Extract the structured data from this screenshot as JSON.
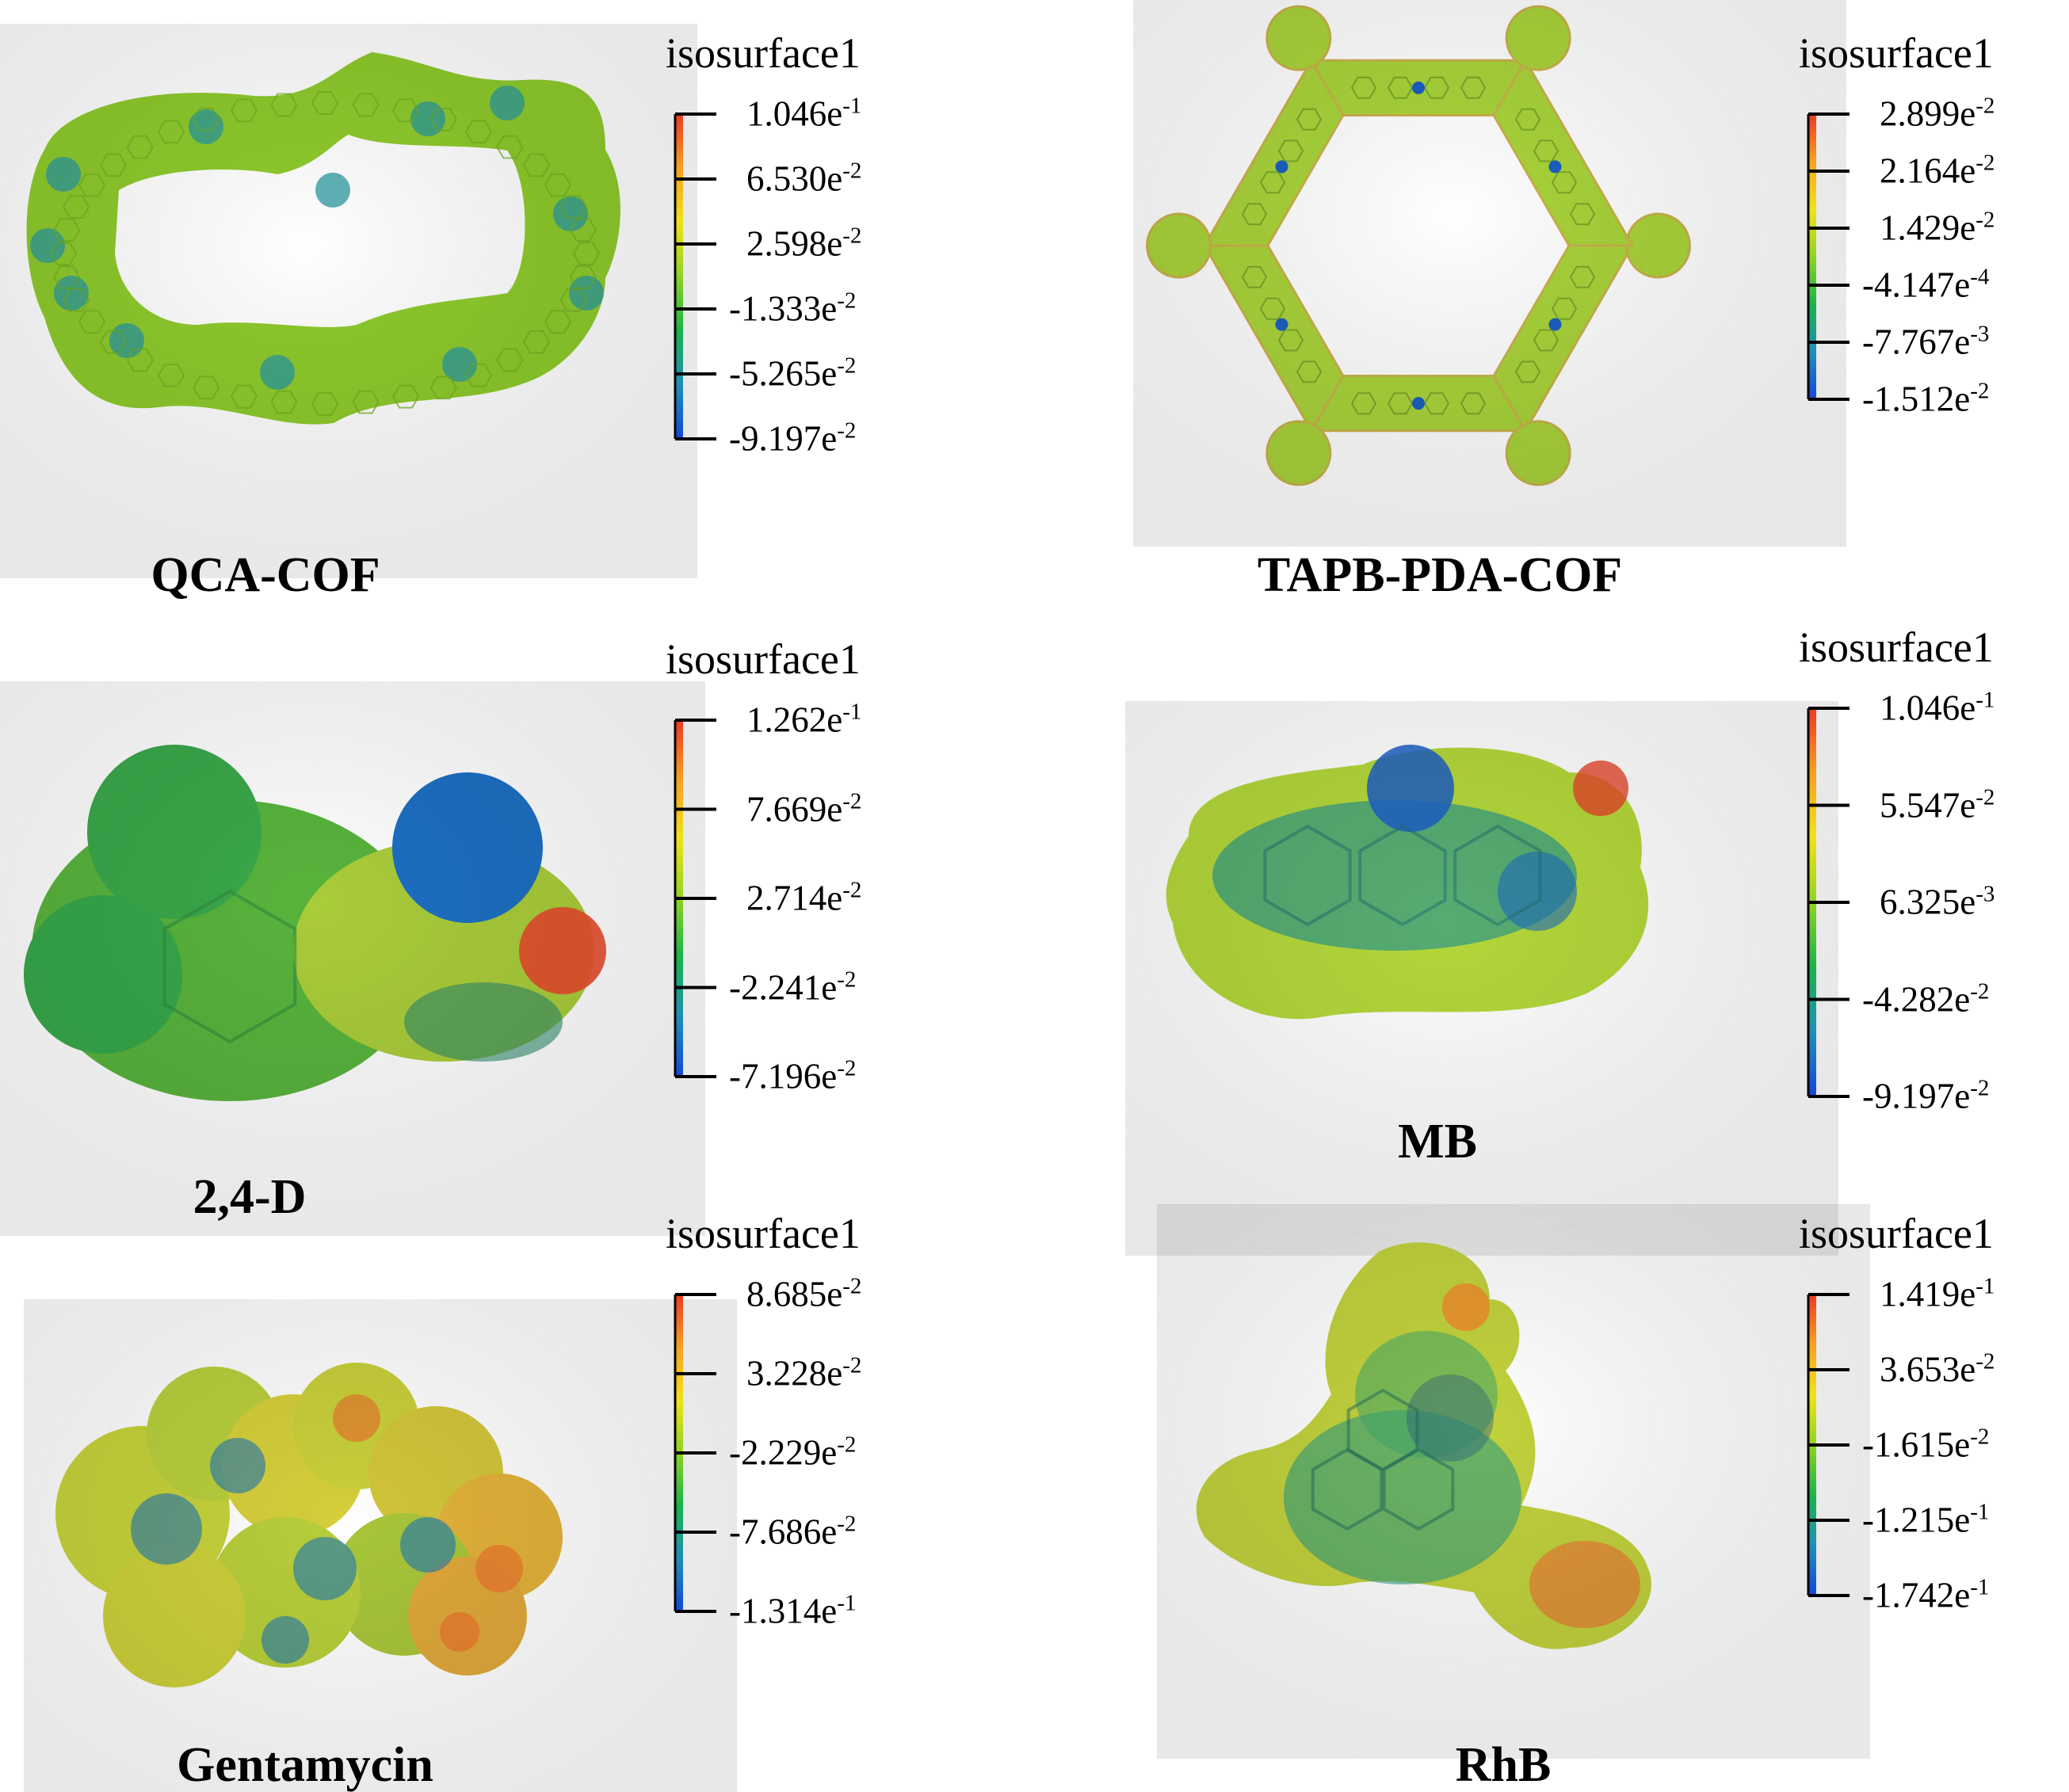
{
  "colorbar_gradient": [
    "#1447d8",
    "#1f8fb8",
    "#19b44a",
    "#8fd321",
    "#f2e21a",
    "#f7a021",
    "#ec3a22"
  ],
  "panels": [
    {
      "id": "qca-cof",
      "name": "QCA-COF",
      "colorbar_title": "isosurface1",
      "ticks": [
        {
          "mantissa": "1.046e",
          "exponent": "-1"
        },
        {
          "mantissa": "6.530e",
          "exponent": "-2"
        },
        {
          "mantissa": "2.598e",
          "exponent": "-2"
        },
        {
          "mantissa": "-1.333e",
          "exponent": "-2"
        },
        {
          "mantissa": "-5.265e",
          "exponent": "-2"
        },
        {
          "mantissa": "-9.197e",
          "exponent": "-2"
        }
      ],
      "shape": "cof-ring",
      "surface_color": "#8ecb2c"
    },
    {
      "id": "tapb-pda-cof",
      "name": "TAPB-PDA-COF",
      "colorbar_title": "isosurface1",
      "ticks": [
        {
          "mantissa": "2.899e",
          "exponent": "-2"
        },
        {
          "mantissa": "2.164e",
          "exponent": "-2"
        },
        {
          "mantissa": "1.429e",
          "exponent": "-2"
        },
        {
          "mantissa": "-4.147e",
          "exponent": "-4"
        },
        {
          "mantissa": "-7.767e",
          "exponent": "-3"
        },
        {
          "mantissa": "-1.512e",
          "exponent": "-2"
        }
      ],
      "shape": "hexagon-framework",
      "surface_color": "#a9d43a"
    },
    {
      "id": "2-4-d",
      "name": "2,4-D",
      "colorbar_title": "isosurface1",
      "ticks": [
        {
          "mantissa": "1.262e",
          "exponent": "-1"
        },
        {
          "mantissa": "7.669e",
          "exponent": "-2"
        },
        {
          "mantissa": "2.714e",
          "exponent": "-2"
        },
        {
          "mantissa": "-2.241e",
          "exponent": "-2"
        },
        {
          "mantissa": "-7.196e",
          "exponent": "-2"
        }
      ],
      "shape": "small-molecule",
      "surface_color": "#5fbf3a"
    },
    {
      "id": "mb",
      "name": "MB",
      "colorbar_title": "isosurface1",
      "ticks": [
        {
          "mantissa": "1.046e",
          "exponent": "-1"
        },
        {
          "mantissa": "5.547e",
          "exponent": "-2"
        },
        {
          "mantissa": "6.325e",
          "exponent": "-3"
        },
        {
          "mantissa": "-4.282e",
          "exponent": "-2"
        },
        {
          "mantissa": "-9.197e",
          "exponent": "-2"
        }
      ],
      "shape": "planar-dye",
      "surface_color": "#b4d83a"
    },
    {
      "id": "gentamycin",
      "name": "Gentamycin",
      "colorbar_title": "isosurface1",
      "ticks": [
        {
          "mantissa": "8.685e",
          "exponent": "-2"
        },
        {
          "mantissa": "3.228e",
          "exponent": "-2"
        },
        {
          "mantissa": "-2.229e",
          "exponent": "-2"
        },
        {
          "mantissa": "-7.686e",
          "exponent": "-2"
        },
        {
          "mantissa": "-1.314e",
          "exponent": "-1"
        }
      ],
      "shape": "aminoglycoside",
      "surface_color": "#c8d23a"
    },
    {
      "id": "rhb",
      "name": "RhB",
      "colorbar_title": "isosurface1",
      "ticks": [
        {
          "mantissa": "1.419e",
          "exponent": "-1"
        },
        {
          "mantissa": "3.653e",
          "exponent": "-2"
        },
        {
          "mantissa": "-1.615e",
          "exponent": "-2"
        },
        {
          "mantissa": "-1.215e",
          "exponent": "-1"
        },
        {
          "mantissa": "-1.742e",
          "exponent": "-1"
        }
      ],
      "shape": "xanthene-dye",
      "surface_color": "#c2d23c"
    }
  ]
}
